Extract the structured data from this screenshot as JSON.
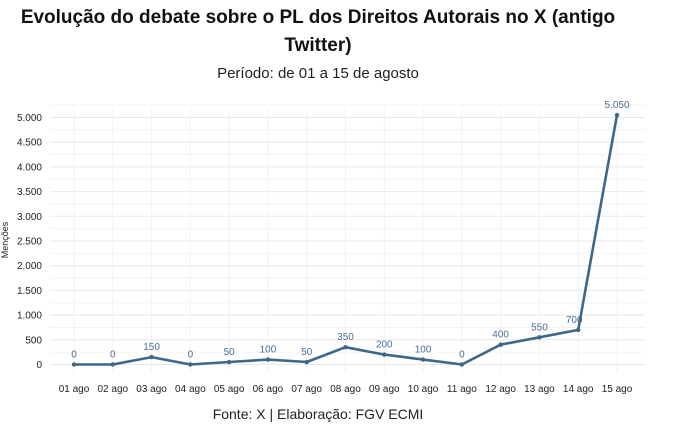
{
  "chart_data": {
    "type": "line",
    "title": "Evolução do debate sobre o PL dos Direitos Autorais no X (antigo Twitter)",
    "subtitle": "Período: de 01 a 15 de agosto",
    "source": "Fonte: X | Elaboração: FGV ECMI",
    "ylabel": "Menções",
    "xlabel": "",
    "categories": [
      "01 ago",
      "02 ago",
      "03 ago",
      "04 ago",
      "05 ago",
      "06 ago",
      "07 ago",
      "08 ago",
      "09 ago",
      "10 ago",
      "11 ago",
      "12 ago",
      "13 ago",
      "14 ago",
      "15 ago"
    ],
    "series": [
      {
        "values": [
          0,
          0,
          150,
          0,
          50,
          100,
          50,
          350,
          200,
          100,
          0,
          400,
          550,
          700,
          5050
        ],
        "labels": [
          "0",
          "0",
          "150",
          "0",
          "50",
          "100",
          "50",
          "350",
          "200",
          "100",
          "0",
          "400",
          "550",
          "700",
          "5.050"
        ]
      }
    ],
    "ylim": [
      0,
      5000
    ],
    "yticks": [
      0,
      500,
      1000,
      1500,
      2000,
      2500,
      3000,
      3500,
      4000,
      4500,
      5000
    ],
    "ytick_labels": [
      "0",
      "500",
      "1.000",
      "1.500",
      "2.000",
      "2.500",
      "3.000",
      "3.500",
      "4.000",
      "4.500",
      "5.000"
    ],
    "grid": true,
    "colors": {
      "line": "#3f6788",
      "label": "#4a6f95",
      "grid": "#e8e8e8"
    }
  }
}
